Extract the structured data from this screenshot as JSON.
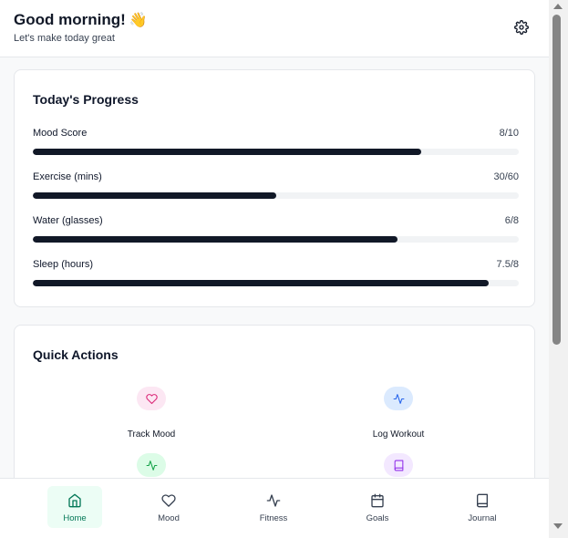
{
  "header": {
    "title": "Good morning!",
    "emoji": "👋",
    "subtitle": "Let's make today great",
    "settings_icon": "gear-icon"
  },
  "progress": {
    "title": "Today's Progress",
    "items": [
      {
        "label": "Mood Score",
        "value_text": "8/10",
        "fraction": 0.8
      },
      {
        "label": "Exercise (mins)",
        "value_text": "30/60",
        "fraction": 0.5
      },
      {
        "label": "Water (glasses)",
        "value_text": "6/8",
        "fraction": 0.75
      },
      {
        "label": "Sleep (hours)",
        "value_text": "7.5/8",
        "fraction": 0.9375
      }
    ]
  },
  "quick_actions": {
    "title": "Quick Actions",
    "items": [
      {
        "label": "Track Mood",
        "icon": "heart-icon",
        "bg": "#fce7f3",
        "color": "#db2777"
      },
      {
        "label": "Log Workout",
        "icon": "activity-icon",
        "bg": "#dbeafe",
        "color": "#2563eb"
      },
      {
        "label": "",
        "icon": "activity-icon",
        "bg": "#dcfce7",
        "color": "#16a34a"
      },
      {
        "label": "",
        "icon": "book-icon",
        "bg": "#f3e8ff",
        "color": "#9333ea"
      }
    ]
  },
  "nav": {
    "items": [
      {
        "label": "Home",
        "icon": "home-icon",
        "active": true
      },
      {
        "label": "Mood",
        "icon": "heart-icon",
        "active": false
      },
      {
        "label": "Fitness",
        "icon": "activity-icon",
        "active": false
      },
      {
        "label": "Goals",
        "icon": "calendar-icon",
        "active": false
      },
      {
        "label": "Journal",
        "icon": "book-icon",
        "active": false
      }
    ]
  },
  "colors": {
    "accent": "#047857",
    "progress_fill": "#111827",
    "progress_track": "#f1f3f5"
  }
}
